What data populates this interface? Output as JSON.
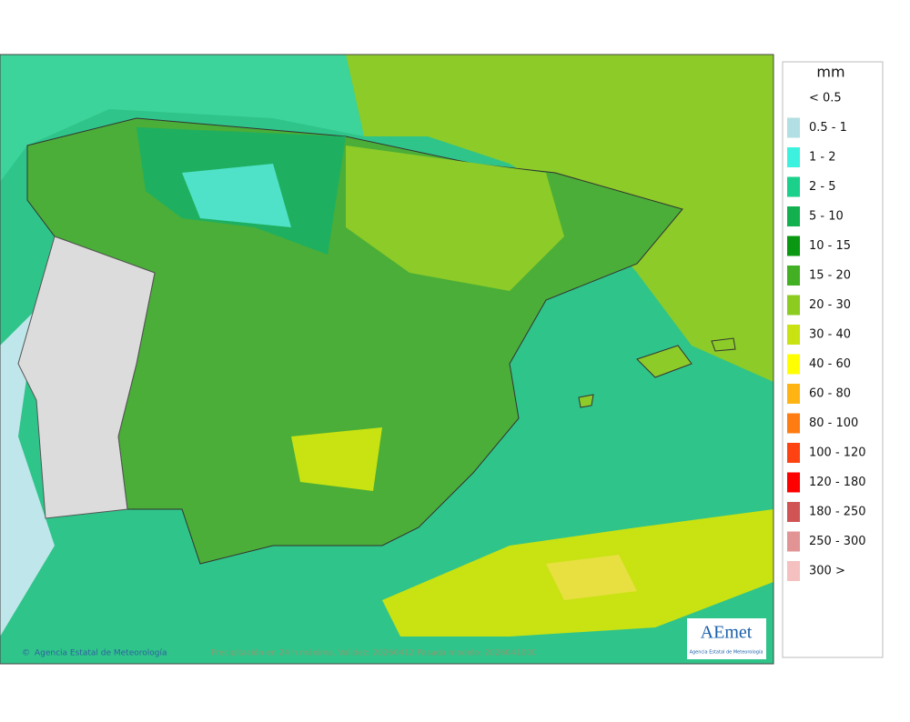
{
  "legend": {
    "title": "mm",
    "items": [
      {
        "label": "< 0.5",
        "color": "#ffffff"
      },
      {
        "label": "0.5 - 1",
        "color": "#b2dfe3"
      },
      {
        "label": "1 - 2",
        "color": "#3cf2de"
      },
      {
        "label": "2 - 5",
        "color": "#1ad08a"
      },
      {
        "label": "5 - 10",
        "color": "#12b04e"
      },
      {
        "label": "10 - 15",
        "color": "#0a9812"
      },
      {
        "label": "15 - 20",
        "color": "#42b022"
      },
      {
        "label": "20 - 30",
        "color": "#8ccb20"
      },
      {
        "label": "30 - 40",
        "color": "#c8e212"
      },
      {
        "label": "40 - 60",
        "color": "#ffff00"
      },
      {
        "label": "60 - 80",
        "color": "#ffb414"
      },
      {
        "label": "80 - 100",
        "color": "#ff7c12"
      },
      {
        "label": "100 - 120",
        "color": "#ff4212"
      },
      {
        "label": "120 - 180",
        "color": "#ff0000"
      },
      {
        "label": "180 - 250",
        "color": "#d05454"
      },
      {
        "label": "250 - 300",
        "color": "#e29494"
      },
      {
        "label": "300 >",
        "color": "#f4c0c0"
      }
    ]
  },
  "footer": {
    "credit": "Agencia Estatal de Meteorología",
    "caption": "Precipitación en 24 h máxima. Validez: 20260412 Pasada modelo: 2026041000"
  },
  "logo": {
    "name": "AEmet",
    "subtitle": "Agencia Estatal de Meteorología"
  }
}
